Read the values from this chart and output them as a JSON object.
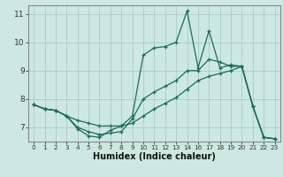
{
  "xlabel": "Humidex (Indice chaleur)",
  "bg_color": "#cce8e0",
  "grid_color": "#aaccC4",
  "line_color": "#1a6b5a",
  "ylim": [
    6.5,
    11.3
  ],
  "yticks": [
    7,
    8,
    9,
    10,
    11
  ],
  "xtick_labels": [
    "0",
    "1",
    "2",
    "3",
    "4",
    "5",
    "6",
    "7",
    "8",
    "9",
    "10",
    "11",
    "12",
    "13",
    "14",
    "16",
    "17",
    "18",
    "19",
    "20",
    "21",
    "22",
    "23"
  ],
  "series": [
    [
      7.8,
      7.65,
      7.6,
      7.4,
      6.95,
      6.7,
      6.65,
      6.9,
      7.05,
      7.4,
      9.55,
      9.8,
      9.85,
      10.0,
      11.1,
      9.1,
      10.4,
      9.1,
      9.2,
      9.15,
      7.75,
      6.65,
      6.6
    ],
    [
      7.8,
      7.65,
      7.6,
      7.4,
      7.25,
      7.15,
      7.05,
      7.05,
      7.05,
      7.15,
      7.4,
      7.65,
      7.85,
      8.05,
      8.35,
      8.65,
      8.8,
      8.9,
      9.0,
      9.15,
      7.75,
      6.65,
      6.6
    ],
    [
      7.8,
      7.65,
      7.6,
      7.4,
      7.0,
      6.85,
      6.75,
      6.8,
      6.85,
      7.3,
      8.0,
      8.25,
      8.45,
      8.65,
      9.0,
      9.0,
      9.4,
      9.3,
      9.15,
      9.15,
      7.75,
      6.65,
      6.6
    ]
  ]
}
